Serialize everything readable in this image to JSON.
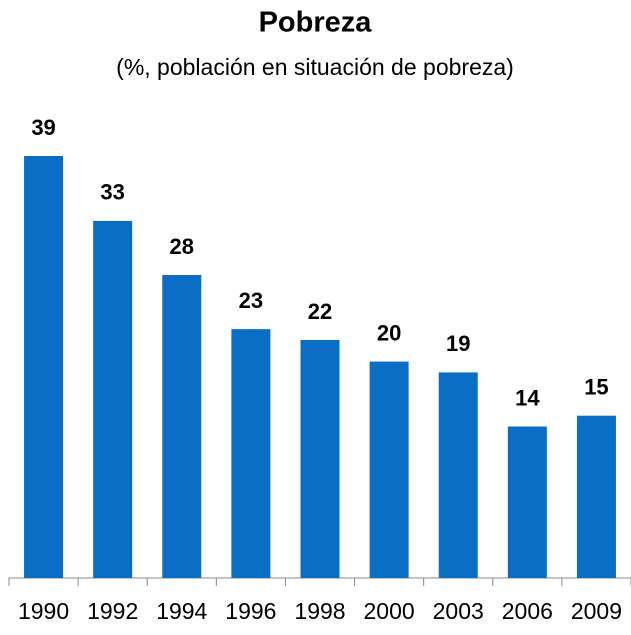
{
  "chart_data": {
    "type": "bar",
    "title": "Pobreza",
    "subtitle": "(%, población en situación de pobreza)",
    "categories": [
      "1990",
      "1992",
      "1994",
      "1996",
      "1998",
      "2000",
      "2003",
      "2006",
      "2009"
    ],
    "values": [
      39,
      33,
      28,
      23,
      22,
      20,
      19,
      14,
      15
    ],
    "color": "#0a6ec4"
  }
}
